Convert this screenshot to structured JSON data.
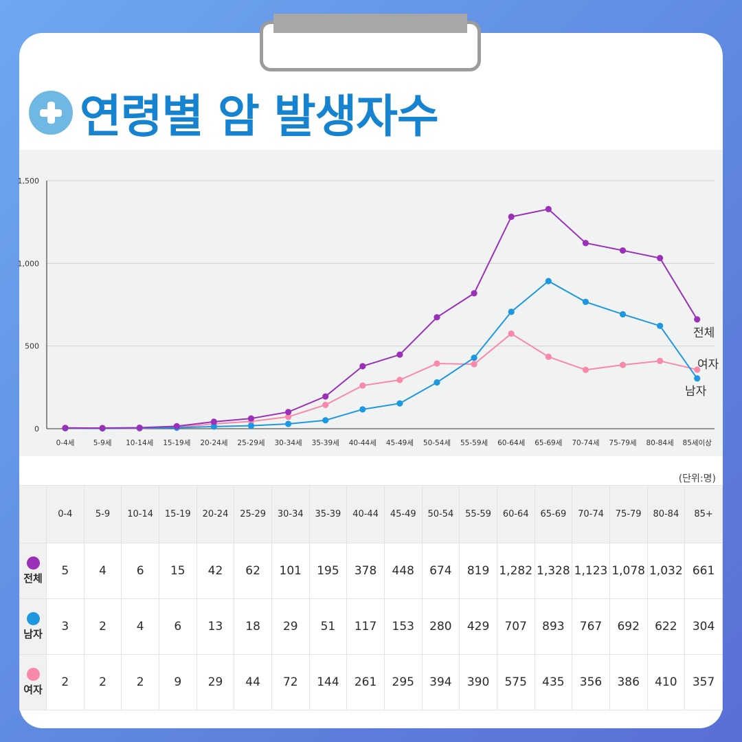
{
  "title": "연령별 암 발생자수",
  "unit_label": "(단위:명)",
  "colors": {
    "total": "#9a30b8",
    "male": "#1d98e0",
    "female": "#f889aa",
    "title": "#1583cf"
  },
  "chart_data": {
    "type": "line",
    "categories": [
      "0-4세",
      "5-9세",
      "10-14세",
      "15-19세",
      "20-24세",
      "25-29세",
      "30-34세",
      "35-39세",
      "40-44세",
      "45-49세",
      "50-54세",
      "55-59세",
      "60-64세",
      "65-69세",
      "70-74세",
      "75-79세",
      "80-84세",
      "85세이상"
    ],
    "series": [
      {
        "name": "전체",
        "color": "#9a30b8",
        "values": [
          5,
          4,
          6,
          15,
          42,
          62,
          101,
          195,
          378,
          448,
          674,
          819,
          1282,
          1328,
          1123,
          1078,
          1032,
          661
        ]
      },
      {
        "name": "남자",
        "color": "#1d98e0",
        "values": [
          3,
          2,
          4,
          6,
          13,
          18,
          29,
          51,
          117,
          153,
          280,
          429,
          707,
          893,
          767,
          692,
          622,
          304
        ]
      },
      {
        "name": "여자",
        "color": "#f889aa",
        "values": [
          2,
          2,
          2,
          9,
          29,
          44,
          72,
          144,
          261,
          295,
          394,
          390,
          575,
          435,
          356,
          386,
          410,
          357
        ]
      }
    ],
    "ylim": [
      0,
      1500
    ],
    "yticks": [
      "0",
      "500",
      "1,000",
      "1,500"
    ],
    "grid": true,
    "legend": "inline-end-labels"
  },
  "table": {
    "headers": [
      "0-4",
      "5-9",
      "10-14",
      "15-19",
      "20-24",
      "25-29",
      "30-34",
      "35-39",
      "40-44",
      "45-49",
      "50-54",
      "55-59",
      "60-64",
      "65-69",
      "70-74",
      "75-79",
      "80-84",
      "85+"
    ],
    "rows": [
      {
        "label": "전체",
        "color": "#9a30b8",
        "cells": [
          "5",
          "4",
          "6",
          "15",
          "42",
          "62",
          "101",
          "195",
          "378",
          "448",
          "674",
          "819",
          "1,282",
          "1,328",
          "1,123",
          "1,078",
          "1,032",
          "661"
        ]
      },
      {
        "label": "남자",
        "color": "#1d98e0",
        "cells": [
          "3",
          "2",
          "4",
          "6",
          "13",
          "18",
          "29",
          "51",
          "117",
          "153",
          "280",
          "429",
          "707",
          "893",
          "767",
          "692",
          "622",
          "304"
        ]
      },
      {
        "label": "여자",
        "color": "#f889aa",
        "cells": [
          "2",
          "2",
          "2",
          "9",
          "29",
          "44",
          "72",
          "144",
          "261",
          "295",
          "394",
          "390",
          "575",
          "435",
          "356",
          "386",
          "410",
          "357"
        ]
      }
    ]
  }
}
